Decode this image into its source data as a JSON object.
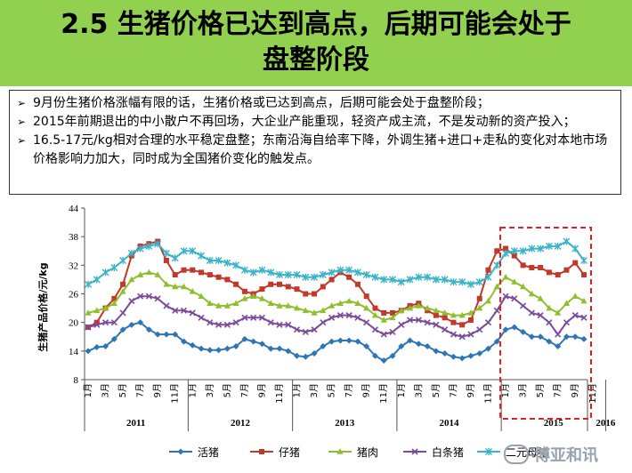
{
  "slide": {
    "title_line1": "2.5 生猪价格已达到高点，后期可能会处于",
    "title_line2": "盘整阶段",
    "title_bg": "#92d050"
  },
  "bullets": [
    "9月份生猪价格涨幅有限的话，生猪价格或已达到高点，后期可能会处于盘整阶段；",
    "2015年前期退出的中小散户不再回场，大企业产能重现，轻资产成主流，不是发动新的资产投入；",
    "16.5-17元/kg相对合理的水平稳定盘整；东南沿海自给率下降，外调生猪+进口+走私的变化对本地市场价格影响力加大，同时成为全国猪价变化的触发点。"
  ],
  "bullet_marker": "➢",
  "watermark": {
    "icon": "wechat-icon",
    "text": "博亚和讯"
  },
  "chart_data": {
    "type": "line",
    "ylabel": "生猪产品价格/元/kg",
    "ylim": [
      8,
      44
    ],
    "yticks": [
      8,
      14,
      20,
      26,
      32,
      38,
      44
    ],
    "month_ticks": [
      "1月",
      "3月",
      "5月",
      "7月",
      "9月",
      "11月",
      "1月",
      "3月",
      "5月",
      "7月",
      "9月",
      "11月",
      "1月",
      "3月",
      "5月",
      "7月",
      "9月",
      "11月",
      "1月",
      "3月",
      "5月",
      "7月",
      "9月",
      "11月",
      "1月",
      "3月",
      "5月",
      "7月",
      "9月",
      "11月",
      "1月",
      "3月",
      "5月"
    ],
    "years": [
      "2011",
      "2012",
      "2013",
      "2014",
      "2015",
      "2016"
    ],
    "series": [
      {
        "name": "活猪",
        "color": "#2e75b6",
        "marker": "diamond",
        "values": [
          14,
          14.8,
          15,
          16.5,
          18.5,
          19.5,
          20,
          18.5,
          17.5,
          17.5,
          17.5,
          16,
          15.2,
          14.5,
          14.2,
          14.2,
          14.5,
          15,
          16.5,
          16,
          15.5,
          14.5,
          14.5,
          14,
          13,
          12.8,
          13.5,
          15,
          16,
          16.2,
          16.2,
          16,
          15,
          13,
          12,
          13,
          15,
          16.2,
          15.5,
          15,
          14,
          13.5,
          12.8,
          12.5,
          13,
          13.5,
          14.5,
          16,
          18.5,
          19,
          18,
          17,
          17,
          16,
          15,
          17,
          17,
          16.5
        ]
      },
      {
        "name": "仔猪",
        "color": "#c0392b",
        "marker": "square",
        "values": [
          19,
          20,
          23,
          25,
          28,
          34,
          36,
          36.5,
          37,
          33,
          30,
          31,
          31,
          30.5,
          30,
          29.5,
          29,
          28,
          26.5,
          26,
          27,
          28,
          28,
          27.5,
          27,
          26,
          26,
          27.5,
          29,
          30.5,
          29.5,
          28,
          25.5,
          23,
          22,
          22,
          22.5,
          23.5,
          24,
          22.5,
          21.5,
          21,
          20,
          19.5,
          20.5,
          25,
          31,
          35,
          35.5,
          34,
          32,
          31.5,
          31.5,
          30.5,
          30,
          31,
          32.5,
          30
        ]
      },
      {
        "name": "猪肉",
        "color": "#8fbf2f",
        "marker": "triangle",
        "values": [
          22,
          22.5,
          23,
          24,
          26.5,
          29,
          30,
          30.5,
          30,
          28,
          27.5,
          27.5,
          26.5,
          25.5,
          24,
          23.5,
          23.5,
          24,
          25,
          25.5,
          25,
          24,
          23.5,
          23.5,
          23,
          22.5,
          22,
          22.5,
          23.5,
          24,
          24.5,
          24,
          23,
          21.5,
          20.5,
          21,
          22.5,
          23,
          23.5,
          23,
          22.5,
          22,
          21.5,
          21.5,
          22,
          23,
          24.5,
          27.5,
          29.5,
          28.5,
          27.5,
          26,
          25,
          23,
          22,
          24,
          25.5,
          24.5
        ]
      },
      {
        "name": "白条猪",
        "color": "#7a4b9a",
        "marker": "x",
        "values": [
          19,
          19.5,
          20,
          20,
          22,
          24.5,
          25.5,
          25.5,
          25,
          23.5,
          22.5,
          22.5,
          22,
          21,
          20,
          19.5,
          19.5,
          20,
          21,
          21,
          21,
          20,
          19.5,
          19.5,
          18.5,
          18,
          18.5,
          20,
          21,
          21.5,
          21.5,
          21,
          20,
          18.5,
          17.5,
          18,
          19.5,
          20.5,
          20.5,
          20,
          19.5,
          18.5,
          17.5,
          17,
          17.5,
          18.5,
          20,
          22.5,
          25.5,
          25,
          23.5,
          22,
          21.5,
          20,
          17.5,
          20,
          21.5,
          21
        ]
      },
      {
        "name": "二元母猪",
        "color": "#3bb3c9",
        "marker": "star",
        "values": [
          28,
          29,
          30.5,
          31.5,
          33,
          34.5,
          35.5,
          36,
          36.5,
          34.5,
          33.5,
          35,
          35,
          34,
          33,
          33,
          32.5,
          32,
          31,
          30.5,
          31,
          30.5,
          30,
          30,
          30,
          29.5,
          29.5,
          30,
          30.5,
          31,
          31,
          30.5,
          30,
          29.5,
          29,
          29,
          28.5,
          29,
          29.5,
          29.5,
          29,
          29,
          28.5,
          28.5,
          28,
          28.5,
          29.5,
          32,
          34.5,
          35,
          35,
          35.5,
          35.5,
          36,
          36,
          37,
          35.5,
          33
        ]
      }
    ],
    "highlight": {
      "from_index": 48,
      "to_index": 57,
      "color": "#e02020"
    }
  }
}
